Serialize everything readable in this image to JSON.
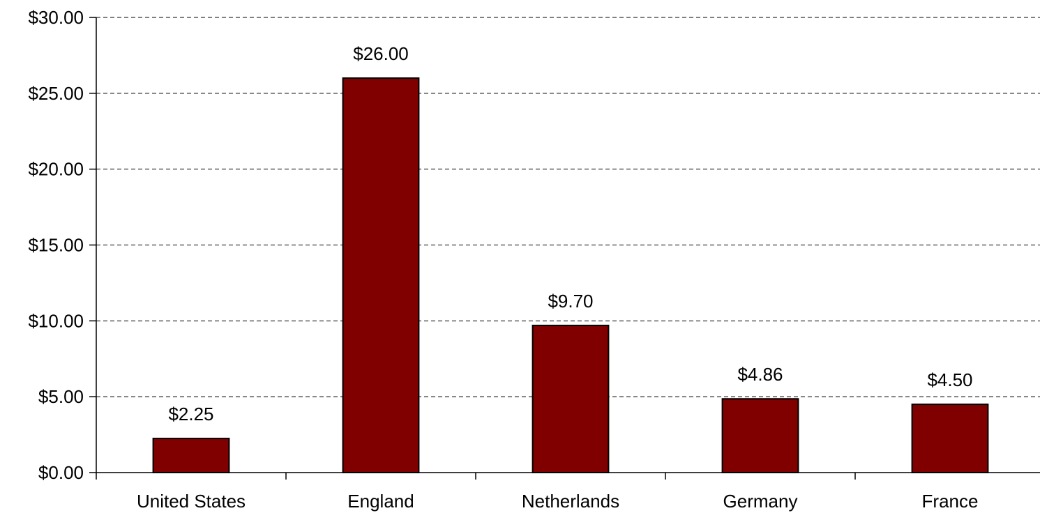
{
  "chart_data": {
    "type": "bar",
    "categories": [
      "United States",
      "England",
      "Netherlands",
      "Germany",
      "France"
    ],
    "values": [
      2.25,
      26.0,
      9.7,
      4.86,
      4.5
    ],
    "data_labels": [
      "$2.25",
      "$26.00",
      "$9.70",
      "$4.86",
      "$4.50"
    ],
    "yticks": [
      0,
      5,
      10,
      15,
      20,
      25,
      30
    ],
    "ytick_labels": [
      "$0.00",
      "$5.00",
      "$10.00",
      "$15.00",
      "$20.00",
      "$25.00",
      "$30.00"
    ],
    "ylim": [
      0,
      30
    ],
    "title": "",
    "xlabel": "",
    "ylabel": "",
    "grid": "horizontal-dashed",
    "legend": "none",
    "colors": {
      "bar": "#800000",
      "bar_border": "#000000"
    }
  }
}
